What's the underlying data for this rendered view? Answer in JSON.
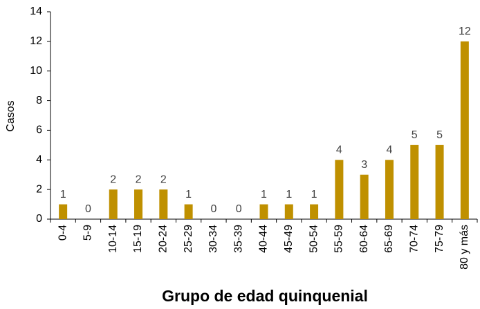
{
  "chart_data": {
    "type": "bar",
    "x_label": "Grupo de edad quinquenial",
    "y_label": "Casos",
    "categories": [
      "0-4",
      "5-9",
      "10-14",
      "15-19",
      "20-24",
      "25-29",
      "30-34",
      "35-39",
      "40-44",
      "45-49",
      "50-54",
      "55-59",
      "60-64",
      "65-69",
      "70-74",
      "75-79",
      "80 y más"
    ],
    "values": [
      1,
      0,
      2,
      2,
      2,
      1,
      0,
      0,
      1,
      1,
      1,
      4,
      3,
      4,
      5,
      5,
      12
    ],
    "color": "#bf9000",
    "ylim": [
      0,
      14
    ],
    "yticks": [
      0,
      2,
      4,
      6,
      8,
      10,
      12,
      14
    ],
    "grid": false,
    "data_labels": true
  }
}
